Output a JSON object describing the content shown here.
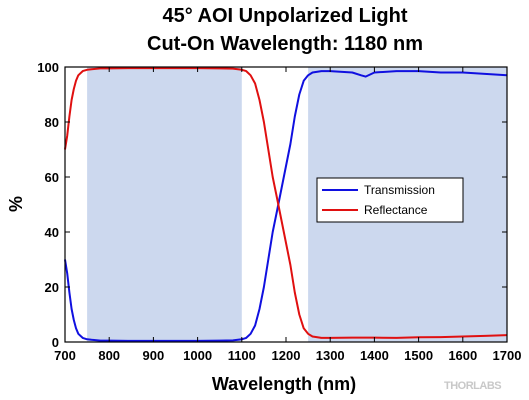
{
  "chart_data": {
    "type": "line",
    "title": [
      "45° AOI Unpolarized Light",
      "Cut-On Wavelength: 1180 nm"
    ],
    "xlabel": "Wavelength (nm)",
    "ylabel": "%",
    "xlim": [
      700,
      1700
    ],
    "ylim": [
      0,
      100
    ],
    "xticks": [
      700,
      800,
      900,
      1000,
      1100,
      1200,
      1300,
      1400,
      1500,
      1600,
      1700
    ],
    "yticks": [
      0,
      20,
      40,
      60,
      80,
      100
    ],
    "grid": false,
    "legend_position": "center-right",
    "shaded_regions": [
      {
        "x0": 750,
        "x1": 1100,
        "color": "#ccd8ee"
      },
      {
        "x0": 1250,
        "x1": 1700,
        "color": "#ccd8ee"
      }
    ],
    "series": [
      {
        "name": "Transmission",
        "color": "#1010e0",
        "x": [
          700,
          705,
          710,
          715,
          720,
          725,
          730,
          740,
          750,
          760,
          780,
          800,
          850,
          900,
          950,
          1000,
          1050,
          1080,
          1100,
          1110,
          1120,
          1130,
          1140,
          1150,
          1160,
          1170,
          1180,
          1190,
          1200,
          1210,
          1220,
          1230,
          1240,
          1250,
          1260,
          1280,
          1300,
          1350,
          1370,
          1380,
          1400,
          1450,
          1500,
          1550,
          1600,
          1650,
          1700
        ],
        "y": [
          30,
          25,
          18,
          12,
          8,
          5,
          3,
          1.5,
          1,
          0.8,
          0.5,
          0.5,
          0.4,
          0.4,
          0.4,
          0.4,
          0.5,
          0.6,
          1,
          1.5,
          3,
          6,
          12,
          20,
          30,
          40,
          48,
          56,
          64,
          72,
          82,
          90,
          95,
          97,
          98,
          98.5,
          98.5,
          98,
          97,
          96.5,
          98,
          98.5,
          98.5,
          98,
          98,
          97.5,
          97
        ]
      },
      {
        "name": "Reflectance",
        "color": "#e01010",
        "x": [
          700,
          705,
          710,
          715,
          720,
          725,
          730,
          740,
          750,
          760,
          780,
          800,
          850,
          900,
          950,
          1000,
          1050,
          1080,
          1100,
          1110,
          1120,
          1130,
          1140,
          1150,
          1160,
          1170,
          1180,
          1190,
          1200,
          1210,
          1220,
          1230,
          1240,
          1250,
          1260,
          1280,
          1300,
          1350,
          1400,
          1450,
          1500,
          1550,
          1600,
          1650,
          1700
        ],
        "y": [
          70,
          75,
          82,
          88,
          92,
          95,
          97,
          98.5,
          99,
          99.2,
          99.5,
          99.5,
          99.6,
          99.6,
          99.6,
          99.6,
          99.5,
          99.4,
          99,
          98.5,
          97,
          94,
          88,
          80,
          70,
          60,
          52,
          44,
          36,
          28,
          18,
          10,
          5,
          3,
          2,
          1.5,
          1.5,
          1.6,
          1.6,
          1.5,
          1.7,
          1.8,
          2,
          2.2,
          2.5
        ]
      }
    ]
  },
  "watermark": "THORLABS"
}
